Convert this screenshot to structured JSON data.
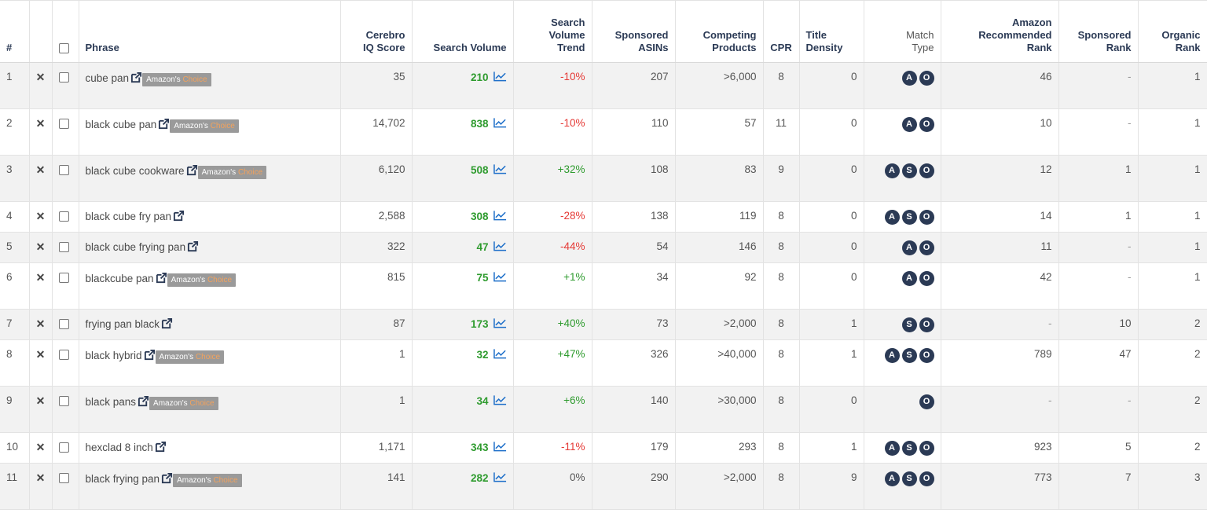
{
  "headers": {
    "num": "#",
    "phrase": "Phrase",
    "iq_1": "Cerebro",
    "iq_2": "IQ Score",
    "sv": "Search Volume",
    "svt_1": "Search",
    "svt_2": "Volume",
    "svt_3": "Trend",
    "sa_1": "Sponsored",
    "sa_2": "ASINs",
    "cp_1": "Competing",
    "cp_2": "Products",
    "cpr": "CPR",
    "td_1": "Title",
    "td_2": "Density",
    "mt_1": "Match",
    "mt_2": "Type",
    "arr_1": "Amazon",
    "arr_2": "Recommended",
    "arr_3": "Rank",
    "sr_1": "Sponsored",
    "sr_2": "Rank",
    "or_1": "Organic",
    "or_2": "Rank"
  },
  "badge": {
    "prefix": "Amazon's",
    "suffix": "Choice"
  },
  "remove_symbol": "✕",
  "match_letters": {
    "A": "A",
    "S": "S",
    "O": "O"
  },
  "colors": {
    "positive": "#2e9b2e",
    "negative": "#e53935",
    "header": "#2b3a55",
    "badge": "#9a9a9a",
    "choice": "#f3a25c"
  },
  "icons": {
    "external": "external-link-icon",
    "trend": "trend-chart-icon",
    "remove": "close-icon"
  },
  "rows": [
    {
      "num": "1",
      "phrase": "cube pan",
      "choice": true,
      "iq": "35",
      "sv": "210",
      "trend": "-10%",
      "trend_dir": "neg",
      "sa": "207",
      "cp": ">6,000",
      "cpr": "8",
      "td": "0",
      "mt": [
        "A",
        "O"
      ],
      "arr": "46",
      "sr": "-",
      "or": "1"
    },
    {
      "num": "2",
      "phrase": "black cube pan",
      "choice": true,
      "iq": "14,702",
      "sv": "838",
      "trend": "-10%",
      "trend_dir": "neg",
      "sa": "110",
      "cp": "57",
      "cpr": "11",
      "td": "0",
      "mt": [
        "A",
        "O"
      ],
      "arr": "10",
      "sr": "-",
      "or": "1"
    },
    {
      "num": "3",
      "phrase": "black cube cookware",
      "choice": true,
      "iq": "6,120",
      "sv": "508",
      "trend": "+32%",
      "trend_dir": "pos",
      "sa": "108",
      "cp": "83",
      "cpr": "9",
      "td": "0",
      "mt": [
        "A",
        "S",
        "O"
      ],
      "arr": "12",
      "sr": "1",
      "or": "1"
    },
    {
      "num": "4",
      "phrase": "black cube fry pan",
      "choice": false,
      "iq": "2,588",
      "sv": "308",
      "trend": "-28%",
      "trend_dir": "neg",
      "sa": "138",
      "cp": "119",
      "cpr": "8",
      "td": "0",
      "mt": [
        "A",
        "S",
        "O"
      ],
      "arr": "14",
      "sr": "1",
      "or": "1"
    },
    {
      "num": "5",
      "phrase": "black cube frying pan",
      "choice": false,
      "iq": "322",
      "sv": "47",
      "trend": "-44%",
      "trend_dir": "neg",
      "sa": "54",
      "cp": "146",
      "cpr": "8",
      "td": "0",
      "mt": [
        "A",
        "O"
      ],
      "arr": "11",
      "sr": "-",
      "or": "1"
    },
    {
      "num": "6",
      "phrase": "blackcube pan",
      "choice": true,
      "iq": "815",
      "sv": "75",
      "trend": "+1%",
      "trend_dir": "pos",
      "sa": "34",
      "cp": "92",
      "cpr": "8",
      "td": "0",
      "mt": [
        "A",
        "O"
      ],
      "arr": "42",
      "sr": "-",
      "or": "1"
    },
    {
      "num": "7",
      "phrase": "frying pan black",
      "choice": false,
      "iq": "87",
      "sv": "173",
      "trend": "+40%",
      "trend_dir": "pos",
      "sa": "73",
      "cp": ">2,000",
      "cpr": "8",
      "td": "1",
      "mt": [
        "S",
        "O"
      ],
      "arr": "-",
      "sr": "10",
      "or": "2"
    },
    {
      "num": "8",
      "phrase": "black hybrid",
      "choice": true,
      "iq": "1",
      "sv": "32",
      "trend": "+47%",
      "trend_dir": "pos",
      "sa": "326",
      "cp": ">40,000",
      "cpr": "8",
      "td": "1",
      "mt": [
        "A",
        "S",
        "O"
      ],
      "arr": "789",
      "sr": "47",
      "or": "2"
    },
    {
      "num": "9",
      "phrase": "black pans",
      "choice": true,
      "iq": "1",
      "sv": "34",
      "trend": "+6%",
      "trend_dir": "pos",
      "sa": "140",
      "cp": ">30,000",
      "cpr": "8",
      "td": "0",
      "mt": [
        "O"
      ],
      "arr": "-",
      "sr": "-",
      "or": "2"
    },
    {
      "num": "10",
      "phrase": "hexclad 8 inch",
      "choice": false,
      "iq": "1,171",
      "sv": "343",
      "trend": "-11%",
      "trend_dir": "neg",
      "sa": "179",
      "cp": "293",
      "cpr": "8",
      "td": "1",
      "mt": [
        "A",
        "S",
        "O"
      ],
      "arr": "923",
      "sr": "5",
      "or": "2"
    },
    {
      "num": "11",
      "phrase": "black frying pan",
      "choice": true,
      "iq": "141",
      "sv": "282",
      "trend": "0%",
      "trend_dir": "zero",
      "sa": "290",
      "cp": ">2,000",
      "cpr": "8",
      "td": "9",
      "mt": [
        "A",
        "S",
        "O"
      ],
      "arr": "773",
      "sr": "7",
      "or": "3"
    }
  ]
}
